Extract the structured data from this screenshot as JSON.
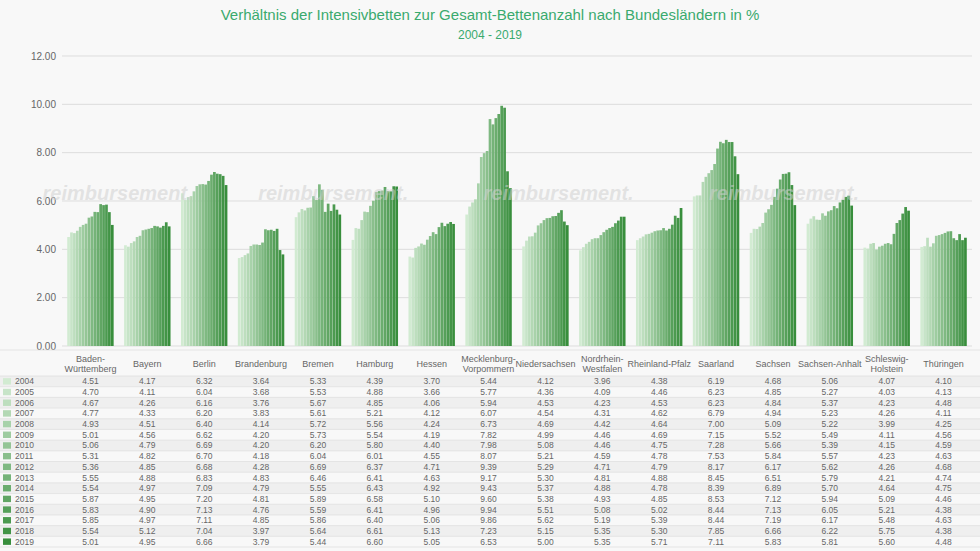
{
  "chart_data": {
    "type": "bar",
    "title": "Verhältnis der Intensivbetten zur Gesamt-Bettenanzahl nach Bundesländern in %",
    "subtitle": "2004 - 2019",
    "annotations": [
      "reimbursement.",
      "reimbursement.",
      "reimbursement.",
      "reimbursement."
    ],
    "categories": [
      "Baden-\nWürttemberg",
      "Bayern",
      "Berlin",
      "Brandenburg",
      "Bremen",
      "Hamburg",
      "Hessen",
      "Mecklenburg-\nVorpommern",
      "Niedersachsen",
      "Nordrhein-\nWestfalen",
      "Rheinland-Pfalz",
      "Saarland",
      "Sachsen",
      "Sachsen-Anhalt",
      "Schleswig-\nHolstein",
      "Thüringen"
    ],
    "series": [
      {
        "name": "2004",
        "color": "#d2ebd2",
        "values": [
          4.51,
          4.17,
          6.32,
          3.64,
          5.33,
          4.39,
          3.7,
          5.44,
          4.12,
          3.96,
          4.38,
          6.19,
          4.68,
          5.06,
          4.07,
          4.1
        ],
        "value_labels": [
          "4.51",
          "4.17",
          "6.32",
          "3.64",
          "5.33",
          "4.39",
          "3.70",
          "5.44",
          "4.12",
          "3.96",
          "4.38",
          "6.19",
          "4.68",
          "5.06",
          "4.07",
          "4.10"
        ]
      },
      {
        "name": "2005",
        "color": "#c7e4c8",
        "values": [
          4.7,
          4.11,
          6.04,
          3.68,
          5.53,
          4.88,
          3.66,
          5.77,
          4.36,
          4.09,
          4.46,
          6.23,
          4.85,
          5.27,
          4.03,
          4.13
        ],
        "value_labels": [
          "4.70",
          "4.11",
          "6.04",
          "3.68",
          "5.53",
          "4.88",
          "3.66",
          "5.77",
          "4.36",
          "4.09",
          "4.46",
          "6.23",
          "4.85",
          "5.27",
          "4.03",
          "4.13"
        ]
      },
      {
        "name": "2006",
        "color": "#bddebe",
        "values": [
          4.67,
          4.26,
          6.16,
          3.76,
          5.67,
          4.85,
          4.06,
          5.94,
          4.53,
          4.23,
          4.53,
          6.23,
          4.84,
          5.37,
          4.23,
          4.48
        ],
        "value_labels": [
          "4.67",
          "4.26",
          "6.16",
          "3.76",
          "5.67",
          "4.85",
          "4.06",
          "5.94",
          "4.53",
          "4.23",
          "4.53",
          "6.23",
          "4.84",
          "5.37",
          "4.23",
          "4.48"
        ]
      },
      {
        "name": "2007",
        "color": "#b3d8b4",
        "values": [
          4.77,
          4.33,
          6.2,
          3.83,
          5.61,
          5.21,
          4.12,
          6.07,
          4.54,
          4.31,
          4.62,
          6.79,
          4.94,
          5.23,
          4.26,
          4.11
        ],
        "value_labels": [
          "4.77",
          "4.33",
          "6.20",
          "3.83",
          "5.61",
          "5.21",
          "4.12",
          "6.07",
          "4.54",
          "4.31",
          "4.62",
          "6.79",
          "4.94",
          "5.23",
          "4.26",
          "4.11"
        ]
      },
      {
        "name": "2008",
        "color": "#a8d2aa",
        "values": [
          4.93,
          4.51,
          6.4,
          4.14,
          5.72,
          5.56,
          4.24,
          6.73,
          4.69,
          4.42,
          4.64,
          7.0,
          5.09,
          5.22,
          3.99,
          4.25
        ],
        "value_labels": [
          "4.93",
          "4.51",
          "6.40",
          "4.14",
          "5.72",
          "5.56",
          "4.24",
          "6.73",
          "4.69",
          "4.42",
          "4.64",
          "7.00",
          "5.09",
          "5.22",
          "3.99",
          "4.25"
        ]
      },
      {
        "name": "2009",
        "color": "#9ecca0",
        "values": [
          5.01,
          4.56,
          6.62,
          4.2,
          5.73,
          5.54,
          4.19,
          7.82,
          4.99,
          4.46,
          4.69,
          7.15,
          5.52,
          5.49,
          4.11,
          4.56
        ],
        "value_labels": [
          "5.01",
          "4.56",
          "6.62",
          "4.20",
          "5.73",
          "5.54",
          "4.19",
          "7.82",
          "4.99",
          "4.46",
          "4.69",
          "7.15",
          "5.52",
          "5.49",
          "4.11",
          "4.56"
        ]
      },
      {
        "name": "2010",
        "color": "#94c596",
        "values": [
          5.06,
          4.79,
          6.69,
          4.2,
          6.2,
          5.8,
          4.4,
          7.98,
          5.08,
          4.46,
          4.75,
          7.28,
          5.66,
          5.39,
          4.15,
          4.59
        ],
        "value_labels": [
          "5.06",
          "4.79",
          "6.69",
          "4.20",
          "6.20",
          "5.80",
          "4.40",
          "7.98",
          "5.08",
          "4.46",
          "4.75",
          "7.28",
          "5.66",
          "5.39",
          "4.15",
          "4.59"
        ]
      },
      {
        "name": "2011",
        "color": "#8abf8c",
        "values": [
          5.31,
          4.82,
          6.7,
          4.18,
          6.04,
          6.01,
          4.55,
          8.07,
          5.21,
          4.59,
          4.78,
          7.53,
          5.84,
          5.57,
          4.23,
          4.63
        ],
        "value_labels": [
          "5.31",
          "4.82",
          "6.70",
          "4.18",
          "6.04",
          "6.01",
          "4.55",
          "8.07",
          "5.21",
          "4.59",
          "4.78",
          "7.53",
          "5.84",
          "5.57",
          "4.23",
          "4.63"
        ]
      },
      {
        "name": "2012",
        "color": "#7fb982",
        "values": [
          5.36,
          4.85,
          6.68,
          4.28,
          6.69,
          6.37,
          4.71,
          9.39,
          5.29,
          4.71,
          4.79,
          8.17,
          6.17,
          5.62,
          4.26,
          4.68
        ],
        "value_labels": [
          "5.36",
          "4.85",
          "6.68",
          "4.28",
          "6.69",
          "6.37",
          "4.71",
          "9.39",
          "5.29",
          "4.71",
          "4.79",
          "8.17",
          "6.17",
          "5.62",
          "4.26",
          "4.68"
        ]
      },
      {
        "name": "2013",
        "color": "#75b378",
        "values": [
          5.55,
          4.88,
          6.83,
          4.83,
          6.46,
          6.41,
          4.63,
          9.17,
          5.3,
          4.81,
          4.88,
          8.45,
          6.51,
          5.79,
          4.21,
          4.74
        ],
        "value_labels": [
          "5.55",
          "4.88",
          "6.83",
          "4.83",
          "6.46",
          "6.41",
          "4.63",
          "9.17",
          "5.30",
          "4.81",
          "4.88",
          "8.45",
          "6.51",
          "5.79",
          "4.21",
          "4.74"
        ]
      },
      {
        "name": "2014",
        "color": "#6bad6e",
        "values": [
          5.54,
          4.97,
          7.09,
          4.79,
          5.55,
          6.43,
          4.92,
          9.43,
          5.37,
          4.88,
          4.78,
          8.39,
          6.89,
          5.7,
          4.64,
          4.75
        ],
        "value_labels": [
          "5.54",
          "4.97",
          "7.09",
          "4.79",
          "5.55",
          "6.43",
          "4.92",
          "9.43",
          "5.37",
          "4.88",
          "4.78",
          "8.39",
          "6.89",
          "5.70",
          "4.64",
          "4.75"
        ]
      },
      {
        "name": "2015",
        "color": "#61a664",
        "values": [
          5.87,
          4.95,
          7.2,
          4.81,
          5.89,
          6.58,
          5.1,
          9.6,
          5.38,
          4.93,
          4.85,
          8.53,
          7.12,
          5.94,
          5.09,
          4.46
        ],
        "value_labels": [
          "5.87",
          "4.95",
          "7.20",
          "4.81",
          "5.89",
          "6.58",
          "5.10",
          "9.60",
          "5.38",
          "4.93",
          "4.85",
          "8.53",
          "7.12",
          "5.94",
          "5.09",
          "4.46"
        ]
      },
      {
        "name": "2016",
        "color": "#56a05a",
        "values": [
          5.83,
          4.9,
          7.13,
          4.76,
          5.59,
          6.41,
          4.96,
          9.94,
          5.51,
          5.08,
          5.02,
          8.44,
          7.13,
          6.05,
          5.21,
          4.38
        ],
        "value_labels": [
          "5.83",
          "4.90",
          "7.13",
          "4.76",
          "5.59",
          "6.41",
          "4.96",
          "9.94",
          "5.51",
          "5.08",
          "5.02",
          "8.44",
          "7.13",
          "6.05",
          "5.21",
          "4.38"
        ]
      },
      {
        "name": "2017",
        "color": "#4c9a50",
        "values": [
          5.85,
          4.97,
          7.11,
          4.85,
          5.86,
          6.4,
          5.06,
          9.86,
          5.62,
          5.19,
          5.39,
          8.44,
          7.19,
          6.17,
          5.48,
          4.63
        ],
        "value_labels": [
          "5.85",
          "4.97",
          "7.11",
          "4.85",
          "5.86",
          "6.40",
          "5.06",
          "9.86",
          "5.62",
          "5.19",
          "5.39",
          "8.44",
          "7.19",
          "6.17",
          "5.48",
          "4.63"
        ]
      },
      {
        "name": "2018",
        "color": "#429446",
        "values": [
          5.54,
          5.12,
          7.04,
          3.97,
          5.64,
          6.61,
          5.13,
          7.23,
          5.15,
          5.35,
          5.3,
          7.85,
          6.66,
          6.22,
          5.75,
          4.38
        ],
        "value_labels": [
          "5.54",
          "5.12",
          "7.04",
          "3.97",
          "5.64",
          "6.61",
          "5.13",
          "7.23",
          "5.15",
          "5.35",
          "5.30",
          "7.85",
          "6.66",
          "6.22",
          "5.75",
          "4.38"
        ]
      },
      {
        "name": "2019",
        "color": "#388e3c",
        "values": [
          5.01,
          4.95,
          6.66,
          3.79,
          5.44,
          6.6,
          5.05,
          6.53,
          5.0,
          5.35,
          5.71,
          7.11,
          5.83,
          5.81,
          5.6,
          4.48
        ],
        "value_labels": [
          "5.01",
          "4.95",
          "6.66",
          "3.79",
          "5.44",
          "6.60",
          "5.05",
          "6.53",
          "5.00",
          "5.35",
          "5.71",
          "7.11",
          "5.83",
          "5.81",
          "5.60",
          "4.48"
        ]
      }
    ],
    "ylim": [
      0,
      12
    ],
    "yticks": [
      {
        "value": 0,
        "label": "0.00"
      },
      {
        "value": 2,
        "label": "2.00"
      },
      {
        "value": 4,
        "label": "4.00"
      },
      {
        "value": 6,
        "label": "6.00"
      },
      {
        "value": 8,
        "label": "8.00"
      },
      {
        "value": 10,
        "label": "10.00"
      },
      {
        "value": 12,
        "label": "12.00"
      }
    ],
    "grid": true,
    "data_labels": true,
    "tick_labels": "y"
  }
}
